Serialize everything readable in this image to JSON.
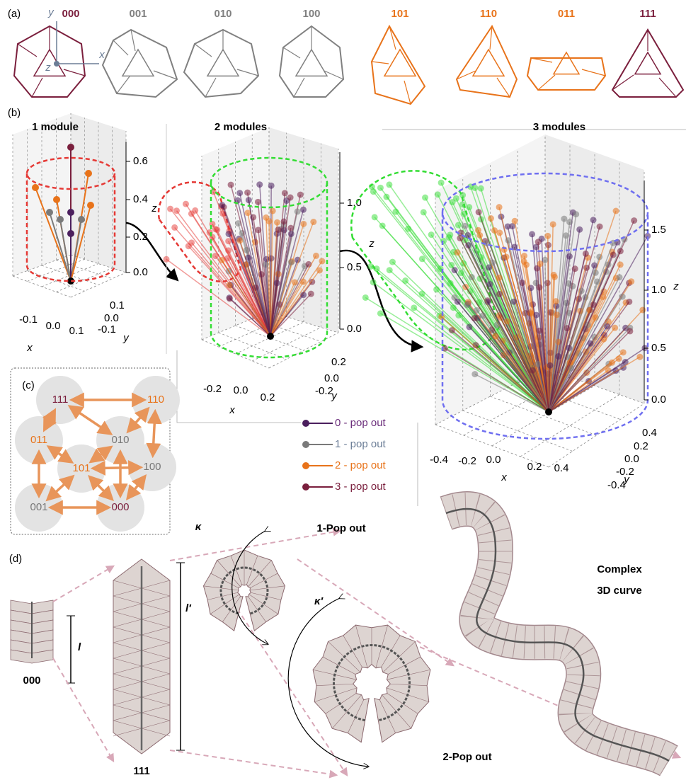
{
  "panel_a": {
    "label": "(a)",
    "axes": [
      "y",
      "x",
      "z"
    ],
    "states": [
      {
        "code": "000",
        "color": "#7b1f3d"
      },
      {
        "code": "001",
        "color": "#808080"
      },
      {
        "code": "010",
        "color": "#808080"
      },
      {
        "code": "100",
        "color": "#808080"
      },
      {
        "code": "101",
        "color": "#e8731a"
      },
      {
        "code": "110",
        "color": "#e8731a"
      },
      {
        "code": "011",
        "color": "#e8731a"
      },
      {
        "code": "111",
        "color": "#7b1f3d"
      }
    ]
  },
  "panel_b": {
    "label": "(b)",
    "plots": [
      {
        "title": "1 module",
        "zticks": [
          "0.0",
          "0.2",
          "0.4",
          "0.6"
        ],
        "xticks": [
          "-0.1",
          "0.0",
          "0.1"
        ],
        "yticks": [
          "0.1",
          "0.0",
          "-0.1"
        ],
        "zlabel": "z",
        "xlabel": "x",
        "ylabel": "y",
        "color": "#e53935"
      },
      {
        "title": "2 modules",
        "zticks": [
          "0.0",
          "0.5",
          "1.0"
        ],
        "xticks": [
          "-0.2",
          "0.0",
          "0.2"
        ],
        "yticks": [
          "0.2",
          "0.0",
          "-0.2"
        ],
        "zlabel": "z",
        "xlabel": "x",
        "ylabel": "y",
        "color": "#33dd33"
      },
      {
        "title": "3 modules",
        "zticks": [
          "0.0",
          "0.5",
          "1.0",
          "1.5"
        ],
        "xticks": [
          "-0.4",
          "-0.2",
          "0.0",
          "0.2",
          "0.4"
        ],
        "yticks": [
          "0.4",
          "0.2",
          "0.0",
          "-0.2",
          "-0.4"
        ],
        "zlabel": "z",
        "xlabel": "x",
        "ylabel": "y",
        "color": "#6f6ff0"
      }
    ],
    "legend": [
      {
        "name": "0 - pop out",
        "color": "#4b1f5e",
        "text_color": "#6a2c7a"
      },
      {
        "name": "1 - pop out",
        "color": "#7a7a7a",
        "text_color": "#6b7d96"
      },
      {
        "name": "2 - pop out",
        "color": "#e8731a",
        "text_color": "#e8731a"
      },
      {
        "name": "3 - pop out",
        "color": "#7a1f3d",
        "text_color": "#7a1f3d"
      }
    ]
  },
  "panel_c": {
    "label": "(c)",
    "nodes": [
      {
        "code": "111",
        "color": "#7b1f3d"
      },
      {
        "code": "110",
        "color": "#e8731a"
      },
      {
        "code": "011",
        "color": "#e8731a"
      },
      {
        "code": "010",
        "color": "#777777"
      },
      {
        "code": "101",
        "color": "#e8731a"
      },
      {
        "code": "100",
        "color": "#777777"
      },
      {
        "code": "001",
        "color": "#777777"
      },
      {
        "code": "000",
        "color": "#7b1f3d"
      }
    ]
  },
  "panel_d": {
    "label": "(d)",
    "short_label": "000",
    "tall_label": "111",
    "l": "l",
    "l_prime": "l′",
    "kappa": "κ",
    "kappa_prime": "κ′",
    "pop1": "1-Pop out",
    "pop2": "2-Pop out",
    "curve_lines": [
      "Complex",
      "3D curve"
    ]
  }
}
